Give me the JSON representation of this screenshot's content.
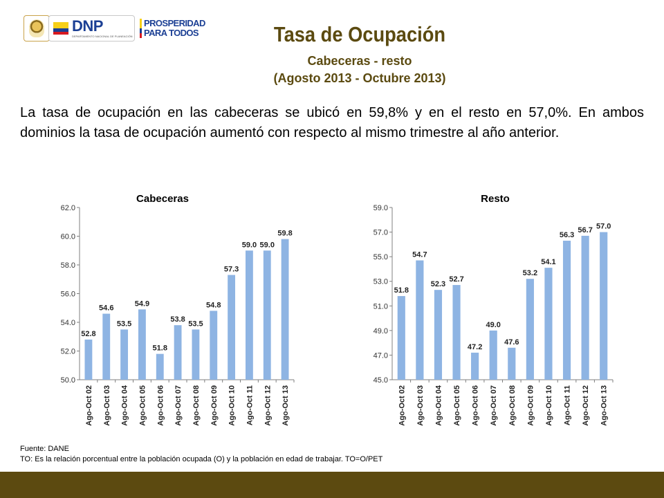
{
  "header": {
    "dnp_logo_text": "DNP",
    "dnp_logo_subtext": "DEPARTAMENTO NACIONAL DE PLANEACIÓN",
    "prosperidad_line1": "PROSPERIDAD",
    "prosperidad_line2": "PARA TODOS",
    "title": "Tasa de Ocupación",
    "subtitle": "Cabeceras - resto",
    "period": "(Agosto 2013 - Octubre 2013)"
  },
  "description": "La tasa de ocupación en las cabeceras se ubicó en 59,8% y en el resto en 57,0%. En ambos dominios la tasa de ocupación aumentó con respecto al mismo trimestre al año anterior.",
  "footer": {
    "source": "Fuente: DANE",
    "note": "TO: Es la relación porcentual entre la población ocupada (O) y la población  en edad de trabajar. TO=O/PET"
  },
  "colors": {
    "bar": "#8eb4e3",
    "brand_brown": "#5c4a10",
    "axis": "#7f7f7f"
  },
  "chart_data": [
    {
      "type": "bar",
      "title": "Cabeceras",
      "categories": [
        "Ago-Oct 02",
        "Ago-Oct 03",
        "Ago-Oct 04",
        "Ago-Oct 05",
        "Ago-Oct 06",
        "Ago-Oct 07",
        "Ago-Oct 08",
        "Ago-Oct 09",
        "Ago-Oct 10",
        "Ago-Oct 11",
        "Ago-Oct 12",
        "Ago-Oct 13"
      ],
      "values": [
        52.8,
        54.6,
        53.5,
        54.9,
        51.8,
        53.8,
        53.5,
        54.8,
        57.3,
        59.0,
        59.0,
        59.8
      ],
      "value_labels": [
        "52.8",
        "54.6",
        "53.5",
        "54.9",
        "51.8",
        "53.8",
        "53.5",
        "54.8",
        "57.3",
        "59.0",
        "59.0",
        "59.8"
      ],
      "ylim": [
        50.0,
        62.0
      ],
      "yticks": [
        "50.0",
        "52.0",
        "54.0",
        "56.0",
        "58.0",
        "60.0",
        "62.0"
      ],
      "grid": false,
      "legend": "none"
    },
    {
      "type": "bar",
      "title": "Resto",
      "categories": [
        "Ago-Oct 02",
        "Ago-Oct 03",
        "Ago-Oct 04",
        "Ago-Oct 05",
        "Ago-Oct 06",
        "Ago-Oct 07",
        "Ago-Oct 08",
        "Ago-Oct 09",
        "Ago-Oct 10",
        "Ago-Oct 11",
        "Ago-Oct 12",
        "Ago-Oct 13"
      ],
      "values": [
        51.8,
        54.7,
        52.3,
        52.7,
        47.2,
        49.0,
        47.6,
        53.2,
        54.1,
        56.3,
        56.7,
        57.0
      ],
      "value_labels": [
        "51.8",
        "54.7",
        "52.3",
        "52.7",
        "47.2",
        "49.0",
        "47.6",
        "53.2",
        "54.1",
        "56.3",
        "56.7",
        "57.0"
      ],
      "ylim": [
        45.0,
        59.0
      ],
      "yticks": [
        "45.0",
        "47.0",
        "49.0",
        "51.0",
        "53.0",
        "55.0",
        "57.0",
        "59.0"
      ],
      "grid": false,
      "legend": "none"
    }
  ]
}
